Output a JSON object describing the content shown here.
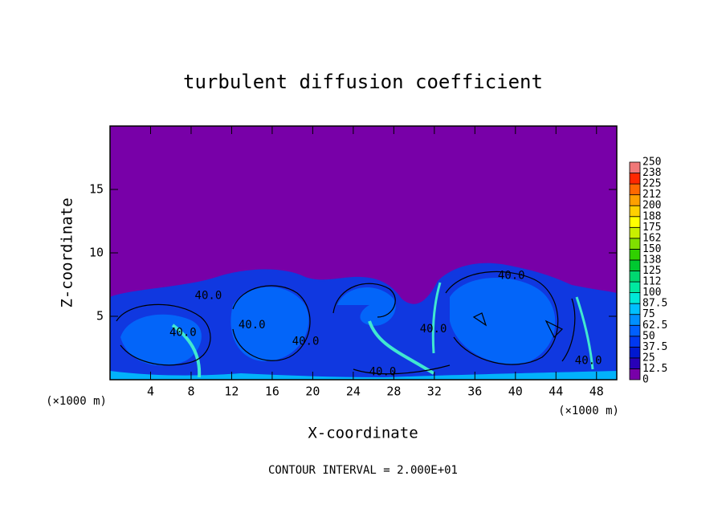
{
  "chart_data": {
    "type": "contour",
    "title": "turbulent diffusion coefficient",
    "xlabel": "X-coordinate",
    "ylabel": "Z-coordinate",
    "axis_unit": "(×1000 m)",
    "xlim": [
      0,
      50
    ],
    "xticks": [
      4,
      8,
      12,
      16,
      20,
      24,
      28,
      32,
      36,
      40,
      44,
      48
    ],
    "ylim": [
      0,
      20
    ],
    "yticks": [
      5,
      10,
      15
    ],
    "background_color": "#7800a8",
    "contour_labels": [
      {
        "text": "40.0",
        "x": 9.7,
        "y": 6.6
      },
      {
        "text": "40.0",
        "x": 7.2,
        "y": 3.7
      },
      {
        "text": "40.0",
        "x": 14.0,
        "y": 4.3
      },
      {
        "text": "40.0",
        "x": 19.3,
        "y": 3.0
      },
      {
        "text": "40.0",
        "x": 26.9,
        "y": 0.6
      },
      {
        "text": "40.0",
        "x": 31.9,
        "y": 4.0
      },
      {
        "text": "40.0",
        "x": 39.6,
        "y": 8.2
      },
      {
        "text": "40.0",
        "x": 47.2,
        "y": 1.5
      }
    ],
    "colorbar": {
      "levels": [
        0,
        12.5,
        25,
        37.5,
        50,
        62.5,
        75,
        87.5,
        100,
        {
          "value": 112.5,
          "label": "112"
        },
        125,
        {
          "value": 137.5,
          "label": "138"
        },
        150,
        {
          "value": 162.5,
          "label": "162"
        },
        175,
        {
          "value": 187.5,
          "label": "188"
        },
        200,
        {
          "value": 212.5,
          "label": "212"
        },
        225,
        {
          "value": 237.5,
          "label": "238"
        },
        250
      ],
      "colors": [
        "#7800a8",
        "#2800b8",
        "#0018d0",
        "#0038f0",
        "#0060ff",
        "#0090ff",
        "#00c0ff",
        "#00e8d8",
        "#00e8a0",
        "#00d870",
        "#00c830",
        "#30d000",
        "#80e000",
        "#c8f000",
        "#ffff00",
        "#ffd000",
        "#ffa000",
        "#ff6800",
        "#ff2800",
        "#f07878"
      ]
    },
    "footnote": "CONTOUR INTERVAL = 2.000E+01"
  }
}
